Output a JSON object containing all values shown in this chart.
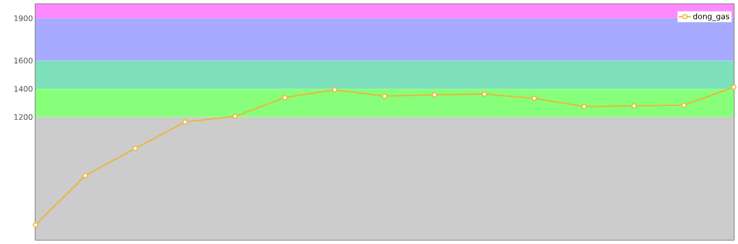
{
  "chart_data": {
    "type": "line",
    "categories": [
      null,
      null,
      null,
      null,
      null,
      null,
      null,
      null,
      null,
      null,
      null,
      null,
      null,
      null,
      null
    ],
    "series": [
      {
        "name": "dong_gas",
        "color": "#e8b83c",
        "values": [
          435,
          785,
          978,
          1165,
          1205,
          1338,
          1393,
          1348,
          1358,
          1363,
          1333,
          1274,
          1279,
          1284,
          1412
        ]
      }
    ],
    "ylim": [
      330,
      2000
    ],
    "yticks": [
      1200,
      1400,
      1600,
      1900
    ],
    "bands": [
      {
        "axis": "y",
        "from": 330,
        "to": 1200,
        "color": "#cccccc"
      },
      {
        "axis": "y",
        "from": 1200,
        "to": 1400,
        "color": "#88ff7a"
      },
      {
        "axis": "y",
        "from": 1400,
        "to": 1600,
        "color": "#7edfbb"
      },
      {
        "axis": "y",
        "from": 1600,
        "to": 1900,
        "color": "#a7aaff"
      },
      {
        "axis": "y",
        "from": 1900,
        "to": 2000,
        "color": "#ff88ff"
      }
    ],
    "legend": "top right",
    "marker": "circle",
    "line_style": "solid"
  }
}
